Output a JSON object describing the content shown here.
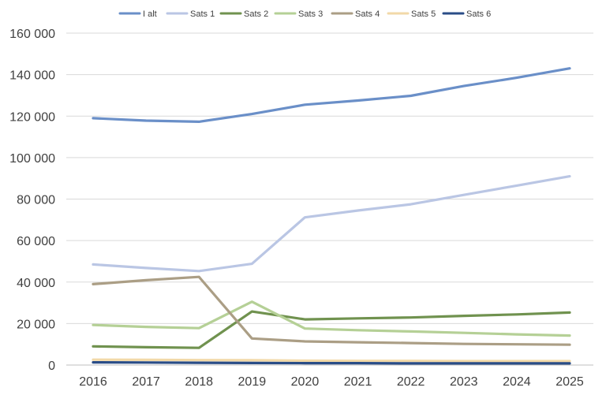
{
  "chart_data": {
    "type": "line",
    "title": "",
    "xlabel": "",
    "ylabel": "",
    "x": [
      "2016",
      "2017",
      "2018",
      "2019",
      "2020",
      "2021",
      "2022",
      "2023",
      "2024",
      "2025"
    ],
    "ylim": [
      0,
      160000
    ],
    "yticks": [
      0,
      20000,
      40000,
      60000,
      80000,
      100000,
      120000,
      140000,
      160000
    ],
    "ytick_labels": [
      "0",
      "20 000",
      "40 000",
      "60 000",
      "80 000",
      "100 000",
      "120 000",
      "140 000",
      "160 000"
    ],
    "grid": true,
    "legend_position": "top",
    "series": [
      {
        "name": "I alt",
        "color": "#6a8fc8",
        "values": [
          119000,
          117800,
          117300,
          121000,
          125500,
          127500,
          129800,
          134500,
          138500,
          143000
        ]
      },
      {
        "name": "Sats 1",
        "color": "#bac6e4",
        "values": [
          48500,
          46800,
          45300,
          48800,
          71200,
          74500,
          77500,
          82000,
          86500,
          91000
        ]
      },
      {
        "name": "Sats 2",
        "color": "#70924f",
        "values": [
          9000,
          8600,
          8300,
          25800,
          22000,
          22500,
          22900,
          23700,
          24400,
          25300
        ]
      },
      {
        "name": "Sats 3",
        "color": "#b5d096",
        "values": [
          19300,
          18400,
          17800,
          30500,
          17600,
          16800,
          16200,
          15500,
          14800,
          14200
        ]
      },
      {
        "name": "Sats 4",
        "color": "#ab9e85",
        "values": [
          39000,
          40900,
          42500,
          12800,
          11400,
          11000,
          10600,
          10200,
          10000,
          9800
        ]
      },
      {
        "name": "Sats 5",
        "color": "#f2d9a8",
        "values": [
          2600,
          2500,
          2400,
          2300,
          2100,
          2000,
          2000,
          1900,
          1900,
          1900
        ]
      },
      {
        "name": "Sats 6",
        "color": "#2a4d87",
        "values": [
          1300,
          1200,
          1100,
          1000,
          900,
          900,
          800,
          800,
          800,
          800
        ]
      }
    ]
  }
}
